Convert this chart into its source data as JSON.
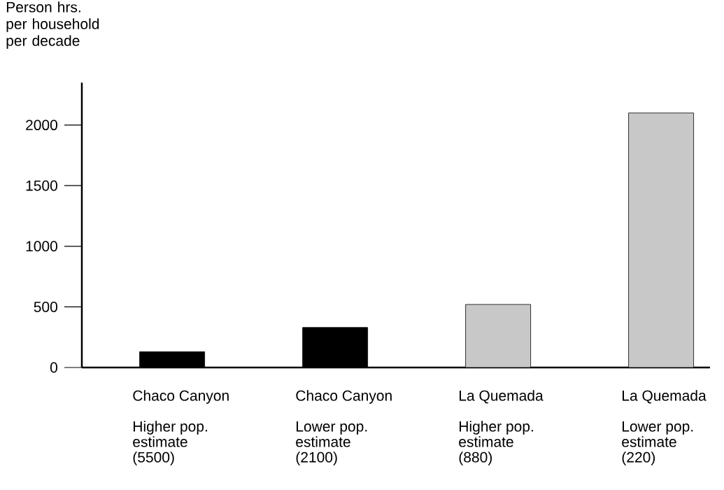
{
  "chart_data": {
    "type": "bar",
    "ylabel": "Person hrs. per household per decade",
    "categories": [
      "Chaco Canyon\n\nHigher pop.\nestimate\n(5500)",
      "Chaco Canyon\n\nLower pop.\nestimate\n(2100)",
      "La Quemada\n\nHigher pop.\nestimate\n(880)",
      "La Quemada\n\nLower pop.\nestimate\n(220)"
    ],
    "values": [
      130,
      330,
      520,
      2100
    ],
    "colors": [
      "#000000",
      "#000000",
      "#c8c8c8",
      "#c8c8c8"
    ],
    "ylim": [
      0,
      2350
    ],
    "yticks": [
      0,
      500,
      1000,
      1500,
      2000
    ]
  }
}
